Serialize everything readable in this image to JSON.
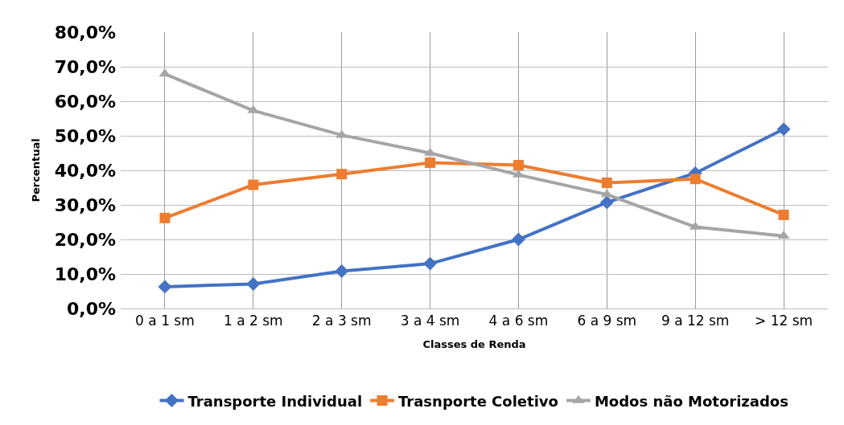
{
  "chart_data": {
    "type": "line",
    "xlabel": "Classes de Renda",
    "ylabel": "Percentual",
    "categories": [
      "0 a 1 sm",
      "1 a 2 sm",
      "2 a 3 sm",
      "3 a 4 sm",
      "4 a 6 sm",
      "6 a 9 sm",
      "9 a 12 sm",
      "> 12 sm"
    ],
    "series": [
      {
        "name": "Transporte Individual",
        "color": "#4472c4",
        "marker": "diamond",
        "values": [
          6.3,
          7.1,
          10.8,
          13.0,
          20.0,
          30.7,
          39.2,
          51.9
        ]
      },
      {
        "name": "Trasnporte Coletivo",
        "color": "#ed7d31",
        "marker": "square",
        "values": [
          26.2,
          35.8,
          38.9,
          42.2,
          41.5,
          36.4,
          37.5,
          27.1
        ]
      },
      {
        "name": "Modos não Motorizados",
        "color": "#a5a5a5",
        "marker": "triangle",
        "values": [
          67.9,
          57.3,
          50.2,
          45.0,
          38.7,
          33.0,
          23.6,
          21.0
        ]
      }
    ],
    "ylim": [
      0,
      80
    ],
    "yticks": [
      {
        "value": 0,
        "label": "0,0%"
      },
      {
        "value": 10,
        "label": "10,0%"
      },
      {
        "value": 20,
        "label": "20,0%"
      },
      {
        "value": 30,
        "label": "30,0%"
      },
      {
        "value": 40,
        "label": "40,0%"
      },
      {
        "value": 50,
        "label": "50,0%"
      },
      {
        "value": 60,
        "label": "60,0%"
      },
      {
        "value": 70,
        "label": "70,0%"
      },
      {
        "value": 80,
        "label": "80,0%"
      }
    ],
    "grid": true,
    "legend": "bottom",
    "line_style": "solid"
  }
}
